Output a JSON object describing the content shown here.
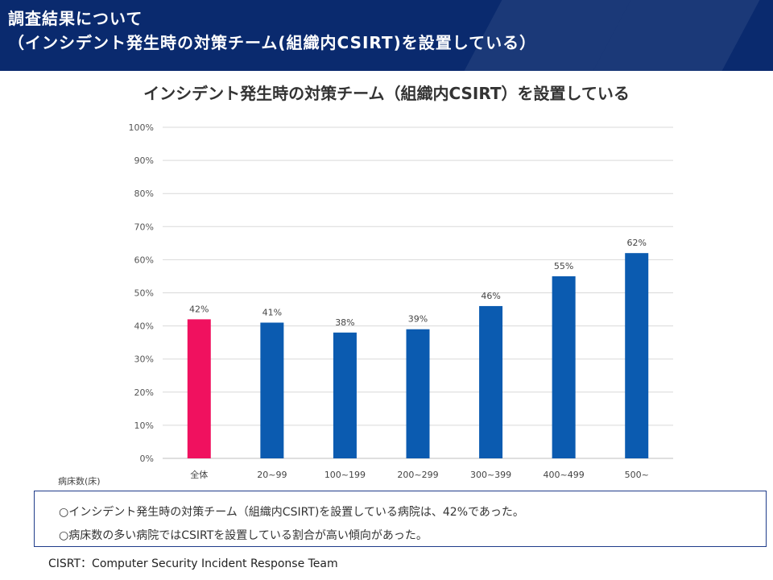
{
  "header": {
    "line1": "調査結果について",
    "line2": "（インシデント発生時の対策チーム(組織内CSIRT)を設置している）",
    "bg_color": "#0a2a6e"
  },
  "chart_data": {
    "type": "bar",
    "title": "インシデント発生時の対策チーム（組織内CSIRT）を設置している",
    "xlabel": "病床数(床)",
    "ylabel": "",
    "categories": [
      "全体",
      "20~99",
      "100~199",
      "200~299",
      "300~399",
      "400~499",
      "500~"
    ],
    "values": [
      42,
      41,
      38,
      39,
      46,
      55,
      62
    ],
    "data_labels": [
      "42%",
      "41%",
      "38%",
      "39%",
      "46%",
      "55%",
      "62%"
    ],
    "ylim": [
      0,
      100
    ],
    "yticks": [
      "0%",
      "10%",
      "20%",
      "30%",
      "40%",
      "50%",
      "60%",
      "70%",
      "80%",
      "90%",
      "100%"
    ],
    "grid": true,
    "legend": "none",
    "colors": {
      "highlight": "#f0115f",
      "bar": "#0b5bb0",
      "grid": "#d9d9d9",
      "axis": "#bfbfbf"
    }
  },
  "notes": [
    "○インシデント発生時の対策チーム（組織内CSIRT)を設置している病院は、42%であった。",
    "○病床数の多い病院ではCSIRTを設置している割合が高い傾向があった。"
  ],
  "footnote": "CISRT：Computer Security Incident Response Team"
}
